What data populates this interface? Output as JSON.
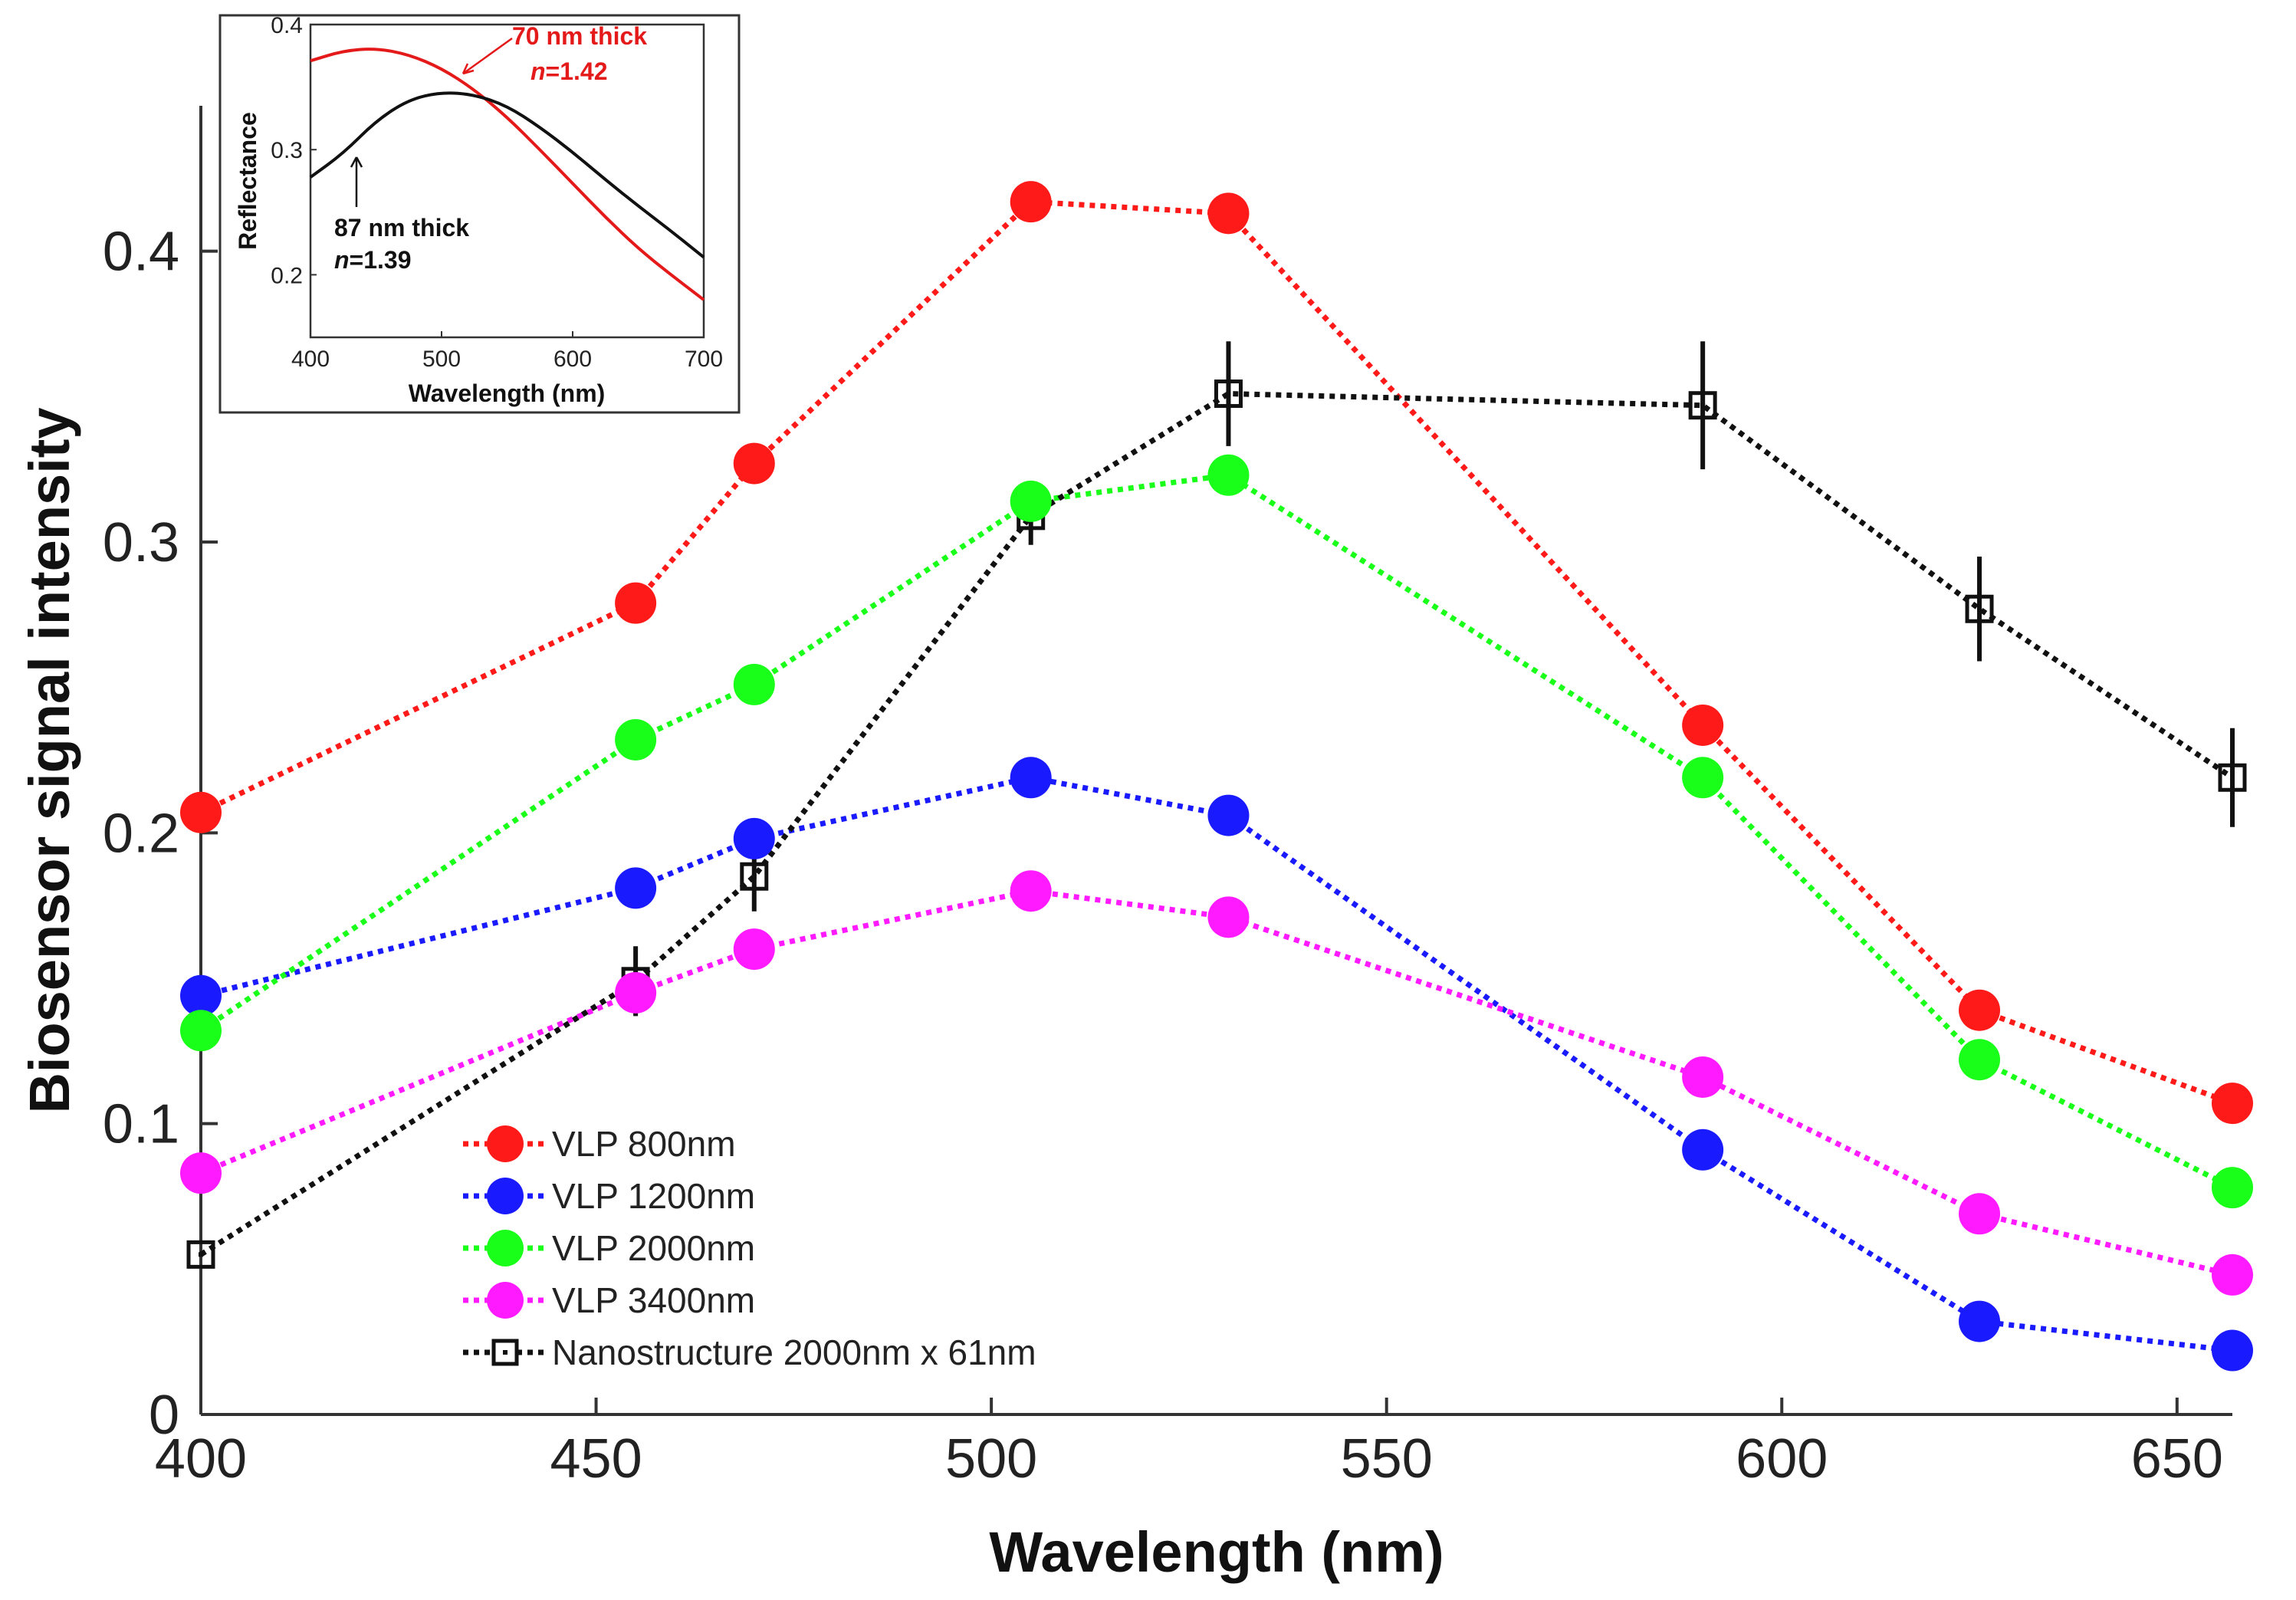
{
  "chart_data": {
    "type": "line",
    "xlabel": "Wavelength (nm)",
    "ylabel": "Biosensor signal intensity",
    "xlim": [
      400,
      657
    ],
    "ylim": [
      0,
      0.45
    ],
    "x_ticks": [
      400,
      450,
      500,
      550,
      600,
      650
    ],
    "x_tick_labels": [
      "400",
      "450",
      "500",
      "550",
      "600",
      "650"
    ],
    "y_ticks": [
      0,
      0.1,
      0.2,
      0.3,
      0.4
    ],
    "y_tick_labels": [
      "0",
      "0.1",
      "0.2",
      "0.3",
      "0.4"
    ],
    "legend_position": "lower-left",
    "x": [
      400,
      455,
      470,
      505,
      530,
      590,
      625,
      657
    ],
    "series": [
      {
        "name": "VLP 800nm",
        "color": "#ff1a1a",
        "marker": "circle",
        "style": "dotted",
        "values": [
          0.207,
          0.279,
          0.327,
          0.417,
          0.413,
          0.237,
          0.139,
          0.107
        ]
      },
      {
        "name": "VLP 1200nm",
        "color": "#1a1aff",
        "marker": "circle",
        "style": "dotted",
        "values": [
          0.144,
          0.181,
          0.198,
          0.219,
          0.206,
          0.091,
          0.032,
          0.022
        ]
      },
      {
        "name": "VLP 2000nm",
        "color": "#1aff1a",
        "marker": "circle",
        "style": "dotted",
        "values": [
          0.132,
          0.232,
          0.251,
          0.314,
          0.323,
          0.219,
          0.122,
          0.078
        ]
      },
      {
        "name": "VLP 3400nm",
        "color": "#ff1aff",
        "marker": "circle",
        "style": "dotted",
        "values": [
          0.083,
          0.145,
          0.16,
          0.18,
          0.171,
          0.116,
          0.069,
          0.048
        ]
      },
      {
        "name": "Nanostructure 2000nm x 61nm",
        "color": "#111111",
        "marker": "square",
        "style": "dotted",
        "values": [
          0.055,
          0.149,
          0.185,
          0.309,
          0.351,
          0.347,
          0.277,
          0.219
        ],
        "errors": [
          0.0,
          0.012,
          0.012,
          0.01,
          0.018,
          0.022,
          0.018,
          0.017
        ]
      }
    ],
    "inset": {
      "xlabel": "Wavelength (nm)",
      "ylabel": "Reflectance",
      "xlim": [
        400,
        700
      ],
      "ylim": [
        0.15,
        0.4
      ],
      "x_ticks": [
        400,
        500,
        600,
        700
      ],
      "x_tick_labels": [
        "400",
        "500",
        "600",
        "700"
      ],
      "y_ticks": [
        0.2,
        0.3,
        0.4
      ],
      "y_tick_labels": [
        "0.2",
        "0.3",
        "0.4"
      ],
      "series": [
        {
          "name": "70 nm thick",
          "index_label": "n=1.42",
          "color": "#e41a1a",
          "x": [
            400,
            425,
            450,
            475,
            500,
            525,
            550,
            575,
            600,
            625,
            650,
            675,
            700
          ],
          "values": [
            0.371,
            0.379,
            0.381,
            0.376,
            0.365,
            0.348,
            0.326,
            0.3,
            0.273,
            0.246,
            0.221,
            0.2,
            0.18
          ]
        },
        {
          "name": "87 nm thick",
          "index_label": "n=1.39",
          "color": "#111111",
          "x": [
            400,
            425,
            450,
            475,
            500,
            525,
            550,
            575,
            600,
            625,
            650,
            675,
            700
          ],
          "values": [
            0.278,
            0.297,
            0.323,
            0.34,
            0.346,
            0.344,
            0.335,
            0.318,
            0.298,
            0.276,
            0.255,
            0.235,
            0.214
          ]
        }
      ],
      "annotations": {
        "red_label_line1": "70 nm thick",
        "red_label_n_italic": "n",
        "red_label_n_value": "=1.42",
        "black_label_line1": "87 nm thick",
        "black_label_n_italic": "n",
        "black_label_n_value": "=1.39"
      }
    }
  }
}
